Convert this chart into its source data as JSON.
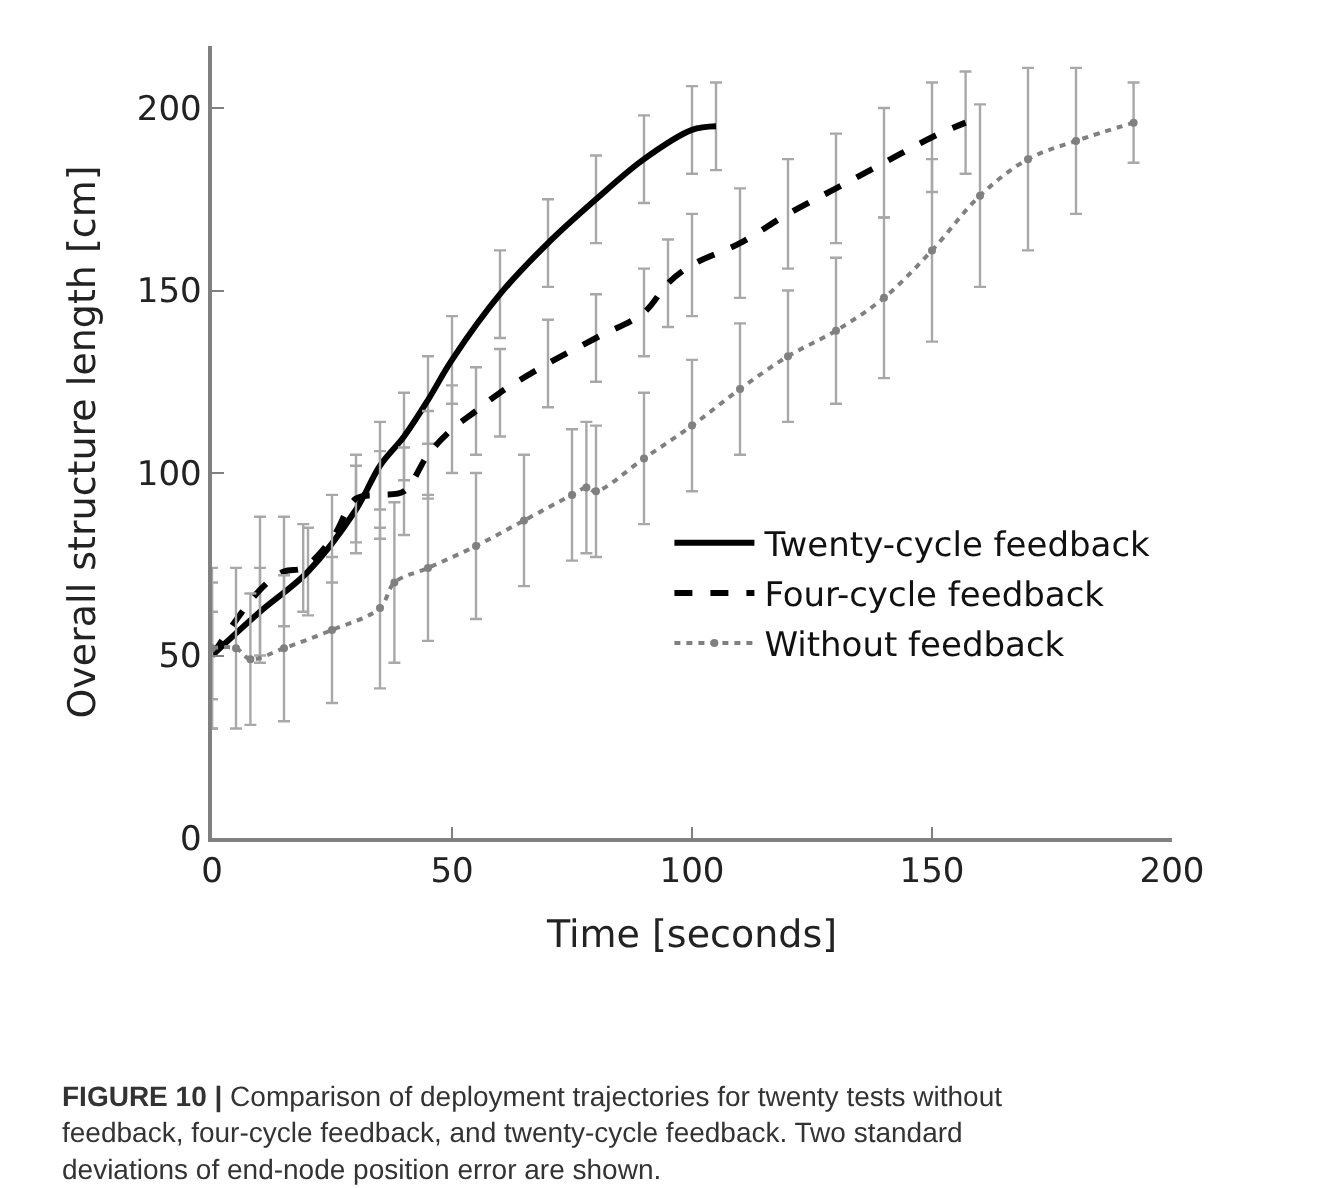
{
  "chart_data": {
    "type": "line",
    "xlabel": "Time [seconds]",
    "ylabel": "Overall structure length [cm]",
    "xlim": [
      0,
      200
    ],
    "ylim": [
      0,
      217
    ],
    "xticks": [
      0,
      50,
      100,
      150,
      200
    ],
    "yticks": [
      0,
      50,
      100,
      150,
      200
    ],
    "legend": "bottom right",
    "series": [
      {
        "name": "Twenty-cycle feedback",
        "color": "#000000",
        "line_style": "solid",
        "marker": "none",
        "x": [
          0,
          10,
          20,
          30,
          35,
          40,
          45,
          50,
          60,
          70,
          80,
          90,
          100,
          105
        ],
        "values": [
          50,
          62,
          73,
          90,
          102,
          110,
          120,
          131,
          149,
          163,
          175,
          186,
          194,
          195
        ],
        "errors": [
          12,
          12,
          12,
          12,
          12,
          12,
          12,
          12,
          12,
          12,
          12,
          12,
          12,
          12
        ]
      },
      {
        "name": "Four-cycle feedback",
        "color": "#000000",
        "line_style": "dashed",
        "marker": "none",
        "x": [
          0,
          10,
          15,
          19,
          25,
          30,
          35,
          40,
          45,
          50,
          55,
          60,
          70,
          80,
          90,
          95,
          100,
          110,
          120,
          130,
          140,
          150,
          157
        ],
        "values": [
          50,
          68,
          73,
          74,
          82,
          93,
          94,
          95,
          105,
          112,
          117,
          122,
          130,
          137,
          144,
          152,
          157,
          163,
          171,
          178,
          185,
          192,
          196
        ],
        "errors": [
          20,
          20,
          15,
          12,
          12,
          12,
          12,
          12,
          12,
          12,
          12,
          12,
          12,
          12,
          12,
          12,
          14,
          15,
          15,
          15,
          15,
          15,
          14
        ]
      },
      {
        "name": "Without feedback",
        "color": "#808080",
        "line_style": "dotted",
        "marker": "circle",
        "x": [
          0,
          5,
          8,
          15,
          25,
          35,
          38,
          45,
          55,
          65,
          75,
          78,
          80,
          90,
          100,
          110,
          120,
          130,
          140,
          150,
          160,
          170,
          180,
          192
        ],
        "values": [
          52,
          52,
          49,
          52,
          57,
          63,
          70,
          74,
          80,
          87,
          94,
          96,
          95,
          104,
          113,
          123,
          132,
          139,
          148,
          161,
          176,
          186,
          191,
          196
        ],
        "errors": [
          22,
          22,
          18,
          20,
          20,
          22,
          22,
          20,
          20,
          18,
          18,
          18,
          18,
          18,
          18,
          18,
          18,
          20,
          22,
          25,
          25,
          25,
          20,
          11
        ]
      }
    ],
    "annotations": [
      "FIGURE 10 | Comparison of deployment trajectories for twenty tests without feedback, four-cycle feedback, and twenty-cycle feedback. Two standard deviations of end-node position error are shown."
    ]
  }
}
